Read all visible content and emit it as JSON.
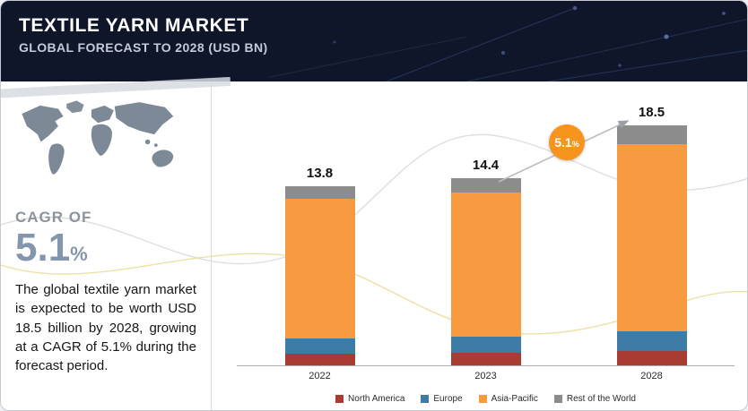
{
  "header": {
    "title": "TEXTILE YARN MARKET",
    "subtitle": "GLOBAL FORECAST TO 2028 (USD BN)"
  },
  "left_panel": {
    "cagr_label": "CAGR OF",
    "cagr_value": "5.1",
    "cagr_unit": "%",
    "description": "The global textile yarn market is expected to be worth USD 18.5 billion by 2028, growing at a CAGR of 5.1% during the forecast period."
  },
  "chart_data": {
    "type": "bar",
    "stacked": true,
    "title": "TEXTILE YARN MARKET — GLOBAL FORECAST TO 2028 (USD BN)",
    "categories": [
      "2022",
      "2023",
      "2028"
    ],
    "series": [
      {
        "name": "North America",
        "color": "#a93c32",
        "values": [
          0.9,
          0.95,
          1.1
        ]
      },
      {
        "name": "Europe",
        "color": "#3e7ca6",
        "values": [
          1.2,
          1.25,
          1.5
        ]
      },
      {
        "name": "Asia-Pacific",
        "color": "#f89a40",
        "values": [
          10.7,
          11.1,
          14.4
        ]
      },
      {
        "name": "Rest of the World",
        "color": "#8c8c8c",
        "values": [
          1.0,
          1.1,
          1.5
        ]
      }
    ],
    "totals": [
      13.8,
      14.4,
      18.5
    ],
    "ylim": [
      0,
      20
    ],
    "legend_position": "bottom",
    "growth_badge_value": "5.1",
    "growth_badge_unit": "%"
  }
}
